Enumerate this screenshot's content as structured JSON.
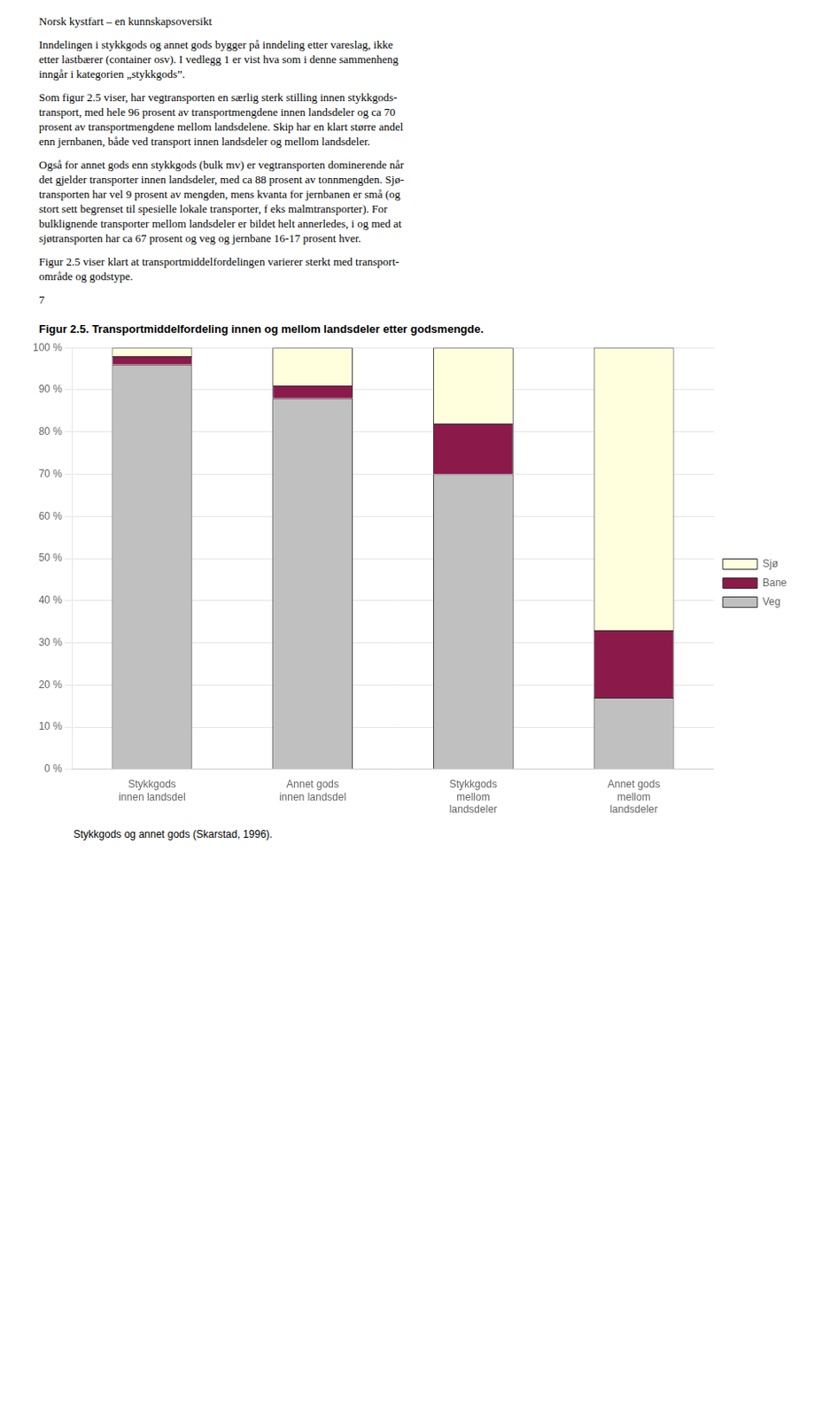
{
  "chart_data": {
    "type": "bar",
    "title": "Figur 2.5.    Transportmiddelfordeling innen og mellom landsdeler etter godsmengde.",
    "subtitle": "Stykkgods og annet gods (Skarstad, 1996).",
    "annotations": [
      [
        "Norsk kystfart – en kunnskapsoversikt"
      ],
      [
        "Inndelingen i stykkgods og annet gods bygger på inndeling etter vareslag, ikke",
        "etter lastbærer (container osv). I vedlegg 1 er vist hva som i denne sammenheng",
        "inngår i kategorien „stykkgods”."
      ],
      [
        "Som figur 2.5 viser, har vegtransporten en særlig sterk stilling innen stykkgods-",
        "transport, med hele 96 prosent av transportmengdene innen landsdeler og ca 70",
        "prosent av transportmengdene mellom landsdelene. Skip har en klart større andel",
        "enn jernbanen, både ved transport innen landsdeler og mellom landsdeler."
      ],
      [
        "Også for annet gods enn stykkgods (bulk mv) er vegtransporten dominerende når",
        "det gjelder transporter innen landsdeler, med ca 88 prosent av tonnmengden. Sjø-",
        "transporten har vel 9 prosent av mengden, mens kvanta for jernbanen er små (og",
        "stort sett begrenset til spesielle lokale transporter, f eks malmtransporter). For",
        "bulklignende transporter mellom landsdeler er bildet helt annerledes, i og med at",
        "sjøtransporten har ca 67 prosent og veg og jernbane 16-17 prosent hver."
      ],
      [
        "Figur 2.5 viser klart at transportmiddelfordelingen varierer sterkt med transport-",
        "område og godstype."
      ],
      [
        "7"
      ]
    ],
    "categories": [
      "Stykkgods\ninnen landsdel",
      "Annet gods\ninnen landsdel",
      "Stykkgods\nmellom\nlandsdeler",
      "Annet gods\nmellom\nlandsdeler"
    ],
    "series": [
      {
        "name": "Veg",
        "color": "#c0c0c0",
        "values": [
          96,
          88,
          70,
          17
        ]
      },
      {
        "name": "Bane",
        "color": "#8b1a4a",
        "values": [
          2,
          3,
          12,
          16
        ]
      },
      {
        "name": "Sjø",
        "color": "#ffffdd",
        "values": [
          2,
          9,
          18,
          67
        ]
      }
    ],
    "stacked": true,
    "ylim": [
      0,
      100
    ],
    "yticks": [
      {
        "value": 0,
        "label": "0 %"
      },
      {
        "value": 10,
        "label": "10 %"
      },
      {
        "value": 20,
        "label": "20 %"
      },
      {
        "value": 30,
        "label": "30 %"
      },
      {
        "value": 40,
        "label": "40 %"
      },
      {
        "value": 50,
        "label": "50 %"
      },
      {
        "value": 60,
        "label": "60 %"
      },
      {
        "value": 70,
        "label": "70 %"
      },
      {
        "value": 80,
        "label": "80 %"
      },
      {
        "value": 90,
        "label": "90 %"
      },
      {
        "value": 100,
        "label": "100 %"
      }
    ],
    "grid": true,
    "legend": "right"
  }
}
